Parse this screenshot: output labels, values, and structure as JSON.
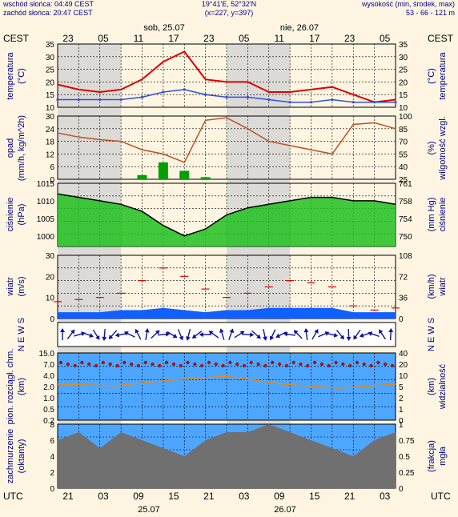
{
  "header": {
    "sunrise": "wschód słońca: 04:49 CEST",
    "sunset": "zachód słońca: 20:47 CEST",
    "coords": "19°41'E, 52°32'N",
    "grid": "(x=227, y=397)",
    "height_label": "wysokość (min, środek, max)",
    "height_values": "53 - 66 - 121 m"
  },
  "time_axis": {
    "top_left": "CEST",
    "top_right": "CEST",
    "bottom_left": "UTC",
    "bottom_right": "UTC",
    "day1": "sob, 25.07",
    "day2": "nie, 26.07",
    "day1_bottom": "25.07",
    "day2_bottom": "26.07",
    "cest_ticks": [
      "23",
      "05",
      "11",
      "17",
      "23",
      "05",
      "11",
      "17",
      "23",
      "05"
    ],
    "utc_ticks": [
      "21",
      "03",
      "09",
      "15",
      "21",
      "03",
      "09",
      "15",
      "21",
      "03"
    ]
  },
  "colors": {
    "bg": "#fdf5e2",
    "night": "#d3d3d3",
    "temp": "#e00000",
    "dew": "#3050e0",
    "humidity": "#c05020",
    "precip": "#00a000",
    "pressure_fill": "#20c020",
    "wind_fill": "#1060ff",
    "arrows": "#1010a0",
    "sky": "#4da6ff"
  },
  "panels": {
    "temp": {
      "left": "temperatura",
      "left_unit": "(°C)",
      "right": "temperatura",
      "right_unit": "(°C)",
      "ticks": [
        "35",
        "30",
        "25",
        "20",
        "15",
        "10"
      ]
    },
    "precip": {
      "left": "opad",
      "left_unit": "(mm/h, kg/m^2h)",
      "right": "wilgotność wzgl.",
      "right_unit": "(%)",
      "ticks_left": [
        "30",
        "24",
        "18",
        "12",
        "6",
        "0"
      ],
      "ticks_right": [
        "100",
        "85",
        "70",
        "55",
        "40",
        "25"
      ]
    },
    "pressure": {
      "left": "ciśnienie",
      "left_unit": "(hPa)",
      "right": "ciśnienie",
      "right_unit": "(mm Hg)",
      "ticks_left": [
        "1015",
        "1010",
        "1005",
        "1000"
      ],
      "ticks_right": [
        "761",
        "758",
        "754",
        "750"
      ]
    },
    "wind": {
      "left": "wiatr",
      "left_unit": "(m/s)",
      "right": "wiatr",
      "right_unit": "(km/h)",
      "ticks_left": [
        "30",
        "20",
        "10",
        "0"
      ],
      "ticks_right": [
        "108",
        "72",
        "36",
        "0"
      ]
    },
    "dir": {
      "left": "N E W S",
      "right": "N E W S"
    },
    "cloudbase": {
      "left": "pion. rozciągł. chm.",
      "left_unit": "(km)",
      "right": "widzialność",
      "right_unit": "(km)",
      "ticks_left": [
        "15.0",
        "7.0",
        "4.0",
        "2.0",
        "1.0",
        "0.5",
        "0.2"
      ],
      "ticks_right": [
        "40",
        "20",
        "10",
        "5",
        "2",
        "1",
        "0"
      ]
    },
    "cloudcover": {
      "left": "zachmurzenie",
      "left_unit": "(oktanty)",
      "right": "mgła",
      "right_unit": "(frakcja)",
      "ticks_left": [
        "8",
        "6",
        "4",
        "2",
        "0"
      ],
      "ticks_right": [
        "1",
        "0.75",
        "0.5",
        "0.25",
        "0"
      ]
    }
  },
  "chart_data": {
    "type": "line",
    "x": [
      0,
      3,
      6,
      9,
      12,
      15,
      18,
      21,
      24,
      27,
      30,
      33,
      36,
      39,
      42,
      45,
      48
    ],
    "x_unit": "hours from 25.07 20:00 CEST",
    "temperature": [
      19,
      17,
      16,
      17,
      21,
      28,
      32,
      21,
      20,
      20,
      16,
      16,
      17,
      18,
      15,
      12,
      13
    ],
    "dew_point": [
      13,
      13,
      13,
      13,
      14,
      16,
      17,
      15,
      14,
      14,
      13,
      12,
      12,
      13,
      12,
      12,
      12
    ],
    "precipitation": [
      0,
      0,
      0,
      0,
      2,
      8,
      4,
      1,
      0,
      0,
      0,
      0,
      0,
      0,
      0,
      0,
      0
    ],
    "humidity": [
      80,
      75,
      72,
      70,
      60,
      55,
      45,
      95,
      98,
      85,
      70,
      65,
      60,
      55,
      90,
      92,
      85
    ],
    "pressure": [
      1012,
      1011,
      1010,
      1009,
      1007,
      1003,
      1000,
      1002,
      1006,
      1008,
      1009,
      1010,
      1011,
      1011,
      1010,
      1010,
      1009
    ],
    "wind_speed": [
      3,
      3,
      3,
      4,
      4,
      5,
      4,
      3,
      4,
      4,
      5,
      5,
      5,
      5,
      3,
      3,
      3
    ],
    "wind_gust": [
      8,
      9,
      10,
      12,
      18,
      24,
      20,
      14,
      10,
      12,
      15,
      18,
      17,
      15,
      6,
      4,
      5
    ],
    "cloud_cover": [
      6,
      7,
      5,
      7,
      6,
      5,
      4,
      6,
      7,
      7,
      8,
      7,
      6,
      5,
      4,
      6,
      7
    ],
    "fog": [
      0,
      0,
      0,
      0,
      0,
      0,
      0,
      0,
      0,
      0,
      0,
      0,
      0,
      0,
      0,
      0,
      0
    ],
    "ylim_temp": [
      10,
      35
    ],
    "ylim_precip": [
      0,
      30
    ],
    "ylim_pressure": [
      997,
      1015
    ],
    "ylim_wind": [
      0,
      30
    ]
  }
}
